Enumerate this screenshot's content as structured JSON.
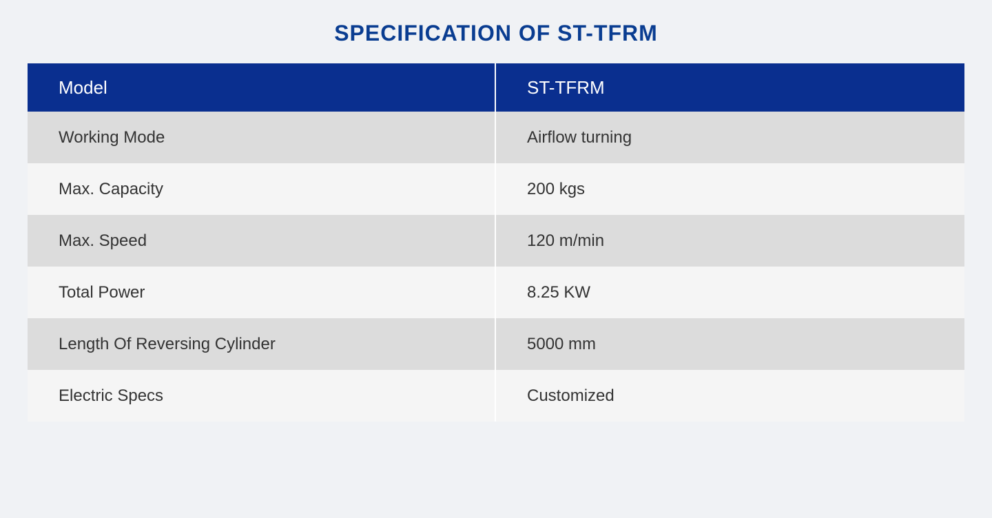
{
  "title": "SPECIFICATION OF ST-TFRM",
  "title_color": "#0a3d91",
  "table": {
    "header_bg_color": "#0a2f8f",
    "header_text_color": "#ffffff",
    "row_odd_bg_color": "#dcdcdc",
    "row_even_bg_color": "#f5f5f5",
    "divider_color": "#ffffff",
    "columns": [
      "Model",
      "ST-TFRM"
    ],
    "rows": [
      [
        "Working Mode",
        "Airflow turning"
      ],
      [
        "Max. Capacity",
        "200 kgs"
      ],
      [
        "Max. Speed",
        "120 m/min"
      ],
      [
        "Total Power",
        "8.25 KW"
      ],
      [
        "Length Of Reversing Cylinder",
        "5000 mm"
      ],
      [
        "Electric Specs",
        "Customized"
      ]
    ]
  }
}
